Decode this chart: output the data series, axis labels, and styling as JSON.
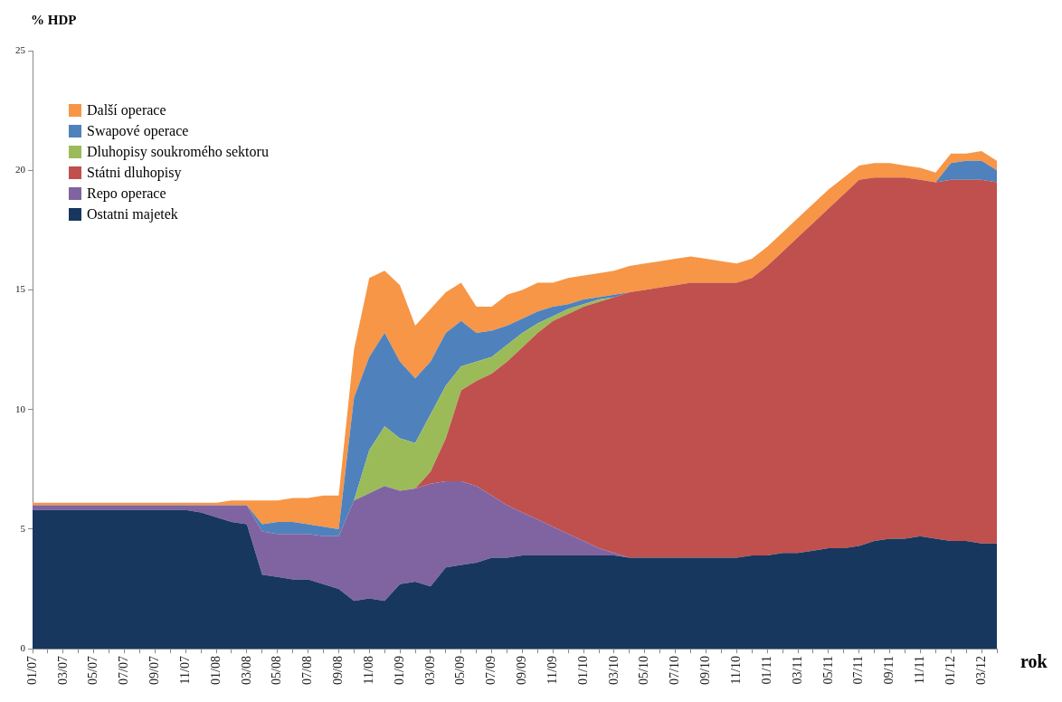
{
  "chart_data": {
    "type": "area",
    "stacked": true,
    "ylabel": "% HDP",
    "xlabel": "rok",
    "legend": "top left",
    "grid": false,
    "categories": [
      "01/07",
      null,
      "03/07",
      null,
      "05/07",
      null,
      "07/07",
      null,
      "09/07",
      null,
      "11/07",
      null,
      "01/08",
      null,
      "03/08",
      null,
      "05/08",
      null,
      "07/08",
      null,
      "09/08",
      null,
      "11/08",
      null,
      "01/09",
      null,
      "03/09",
      null,
      "05/09",
      null,
      "07/09",
      null,
      "09/09",
      null,
      "11/09",
      null,
      "01/10",
      null,
      "03/10",
      null,
      "05/10",
      null,
      "07/10",
      null,
      "09/10",
      null,
      "11/10",
      null,
      "01/11",
      null,
      "03/11",
      null,
      "05/11",
      null,
      "07/11",
      null,
      "09/11",
      null,
      "11/11",
      null,
      "01/12",
      null,
      "03/12",
      null
    ],
    "ylim": [
      0,
      25
    ],
    "yticks": [
      0,
      5,
      10,
      15,
      20,
      25
    ],
    "series": [
      {
        "name": "Ostatni majetek",
        "color": "#17375e",
        "values": [
          5.8,
          5.8,
          5.8,
          5.8,
          5.8,
          5.8,
          5.8,
          5.8,
          5.8,
          5.8,
          5.8,
          5.7,
          5.5,
          5.3,
          5.2,
          3.1,
          3.0,
          2.9,
          2.9,
          2.7,
          2.5,
          2.0,
          2.1,
          2.0,
          2.7,
          2.8,
          2.6,
          3.4,
          3.5,
          3.6,
          3.8,
          3.8,
          3.9,
          3.9,
          3.9,
          3.9,
          3.9,
          3.9,
          3.9,
          3.8,
          3.8,
          3.8,
          3.8,
          3.8,
          3.8,
          3.8,
          3.8,
          3.9,
          3.9,
          4.0,
          4.0,
          4.1,
          4.2,
          4.2,
          4.3,
          4.5,
          4.6,
          4.6,
          4.7,
          4.6,
          4.5,
          4.5,
          4.4,
          4.4
        ]
      },
      {
        "name": "Repo operace",
        "color": "#8064a2",
        "values": [
          0.2,
          0.2,
          0.2,
          0.2,
          0.2,
          0.2,
          0.2,
          0.2,
          0.2,
          0.2,
          0.2,
          0.3,
          0.5,
          0.7,
          0.8,
          1.8,
          1.8,
          1.9,
          1.9,
          2.0,
          2.2,
          4.2,
          4.4,
          4.8,
          3.9,
          3.9,
          4.3,
          3.6,
          3.5,
          3.2,
          2.6,
          2.2,
          1.8,
          1.5,
          1.2,
          0.9,
          0.6,
          0.3,
          0.1,
          0,
          0,
          0,
          0,
          0,
          0,
          0,
          0,
          0,
          0,
          0,
          0,
          0,
          0,
          0,
          0,
          0,
          0,
          0,
          0,
          0,
          0,
          0,
          0,
          0
        ]
      },
      {
        "name": "Státni dluhopisy",
        "color": "#c0504d",
        "values": [
          0,
          0,
          0,
          0,
          0,
          0,
          0,
          0,
          0,
          0,
          0,
          0,
          0,
          0,
          0,
          0,
          0,
          0,
          0,
          0,
          0,
          0,
          0,
          0,
          0,
          0,
          0.5,
          1.8,
          3.8,
          4.4,
          5.1,
          6.0,
          6.9,
          7.8,
          8.6,
          9.2,
          9.8,
          10.3,
          10.7,
          11.1,
          11.2,
          11.3,
          11.4,
          11.5,
          11.5,
          11.5,
          11.5,
          11.6,
          12.1,
          12.6,
          13.2,
          13.7,
          14.2,
          14.8,
          15.3,
          15.2,
          15.1,
          15.1,
          14.9,
          14.9,
          15.1,
          15.1,
          15.2,
          15.1
        ]
      },
      {
        "name": "Dluhopisy soukromého sektoru",
        "color": "#9bbb59",
        "values": [
          0,
          0,
          0,
          0,
          0,
          0,
          0,
          0,
          0,
          0,
          0,
          0,
          0,
          0,
          0,
          0,
          0,
          0,
          0,
          0,
          0,
          0,
          1.8,
          2.5,
          2.2,
          1.9,
          2.4,
          2.2,
          1.0,
          0.8,
          0.7,
          0.7,
          0.6,
          0.4,
          0.2,
          0.2,
          0.1,
          0.1,
          0,
          0,
          0,
          0,
          0,
          0,
          0,
          0,
          0,
          0,
          0,
          0,
          0,
          0,
          0,
          0,
          0,
          0,
          0,
          0,
          0,
          0,
          0,
          0,
          0,
          0
        ]
      },
      {
        "name": "Swapové operace",
        "color": "#4f81bd",
        "values": [
          0,
          0,
          0,
          0,
          0,
          0,
          0,
          0,
          0,
          0,
          0,
          0,
          0,
          0,
          0,
          0.3,
          0.5,
          0.5,
          0.4,
          0.4,
          0.3,
          4.3,
          3.9,
          3.9,
          3.2,
          2.7,
          2.2,
          2.2,
          1.9,
          1.2,
          1.1,
          0.8,
          0.6,
          0.5,
          0.4,
          0.2,
          0.2,
          0.1,
          0.1,
          0,
          0,
          0,
          0,
          0,
          0,
          0,
          0,
          0,
          0,
          0,
          0,
          0,
          0,
          0,
          0,
          0,
          0,
          0,
          0,
          0,
          0.7,
          0.8,
          0.8,
          0.5
        ]
      },
      {
        "name": "Další operace",
        "color": "#f79646",
        "values": [
          0.1,
          0.1,
          0.1,
          0.1,
          0.1,
          0.1,
          0.1,
          0.1,
          0.1,
          0.1,
          0.1,
          0.1,
          0.1,
          0.2,
          0.2,
          1.0,
          0.9,
          1.0,
          1.1,
          1.3,
          1.4,
          2.0,
          3.3,
          2.6,
          3.2,
          2.2,
          2.2,
          1.7,
          1.6,
          1.1,
          1.0,
          1.3,
          1.2,
          1.2,
          1.0,
          1.1,
          1.0,
          1.0,
          1.0,
          1.1,
          1.1,
          1.1,
          1.1,
          1.1,
          1.0,
          0.9,
          0.8,
          0.8,
          0.8,
          0.8,
          0.8,
          0.8,
          0.8,
          0.7,
          0.6,
          0.6,
          0.6,
          0.5,
          0.5,
          0.4,
          0.4,
          0.3,
          0.4,
          0.4
        ]
      }
    ]
  }
}
